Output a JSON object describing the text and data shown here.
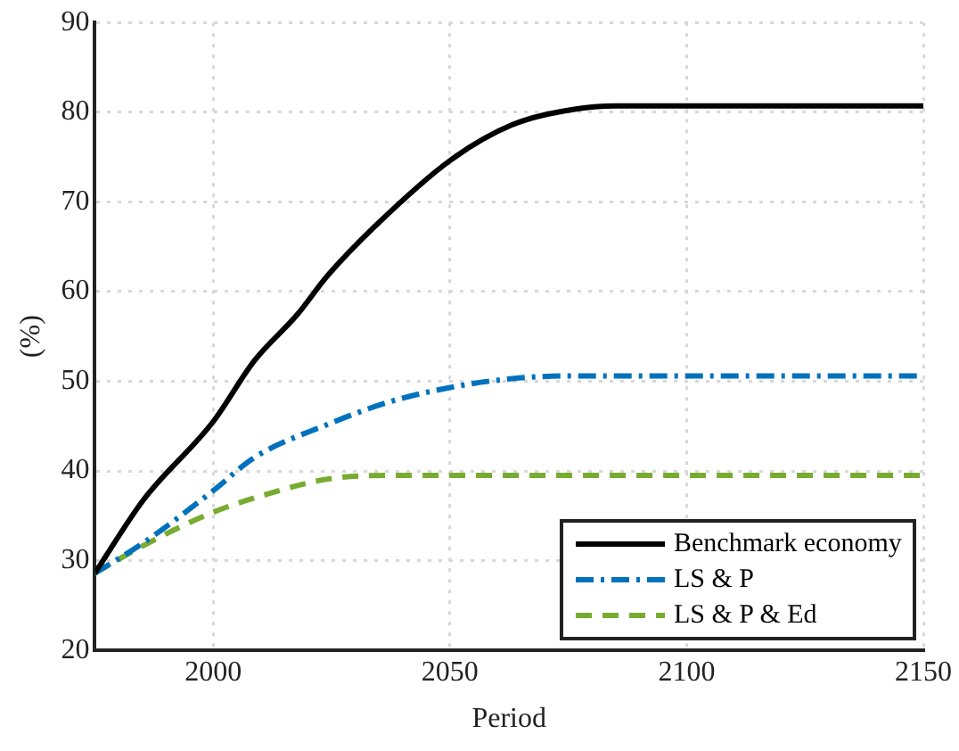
{
  "chart_data": {
    "type": "line",
    "xlabel": "Period",
    "ylabel": "(%)",
    "xlim": [
      1975,
      2150
    ],
    "xticks": [
      2000,
      2050,
      2100,
      2150
    ],
    "ylim": [
      20,
      90
    ],
    "yticks": [
      20,
      30,
      40,
      50,
      60,
      70,
      80,
      90
    ],
    "grid": true,
    "legend": "bottom right",
    "marker": "none",
    "series": [
      {
        "name": "Benchmark economy",
        "color": "#000000",
        "line_style": "solid",
        "x": [
          1975,
          1985.3,
          2000,
          2008.7,
          2017.7,
          2024.2,
          2034.6,
          2050,
          2063.2,
          2076,
          2085,
          2150
        ],
        "values": [
          28.6,
          36.8,
          45.5,
          52.3,
          57.4,
          61.8,
          67.5,
          74.6,
          78.6,
          80.3,
          80.7,
          80.7
        ]
      },
      {
        "name": "LS & P",
        "color": "#0072bd",
        "line_style": "dashdot",
        "x": [
          1975,
          1985.3,
          2000,
          2008.7,
          2024.2,
          2037.2,
          2050,
          2063.2,
          2076,
          2150
        ],
        "values": [
          28.6,
          32.0,
          37.8,
          41.5,
          45.2,
          47.7,
          49.3,
          50.3,
          50.6,
          50.6
        ]
      },
      {
        "name": "LS & P & Ed",
        "color": "#77ac30",
        "line_style": "dashed",
        "x": [
          1975,
          1985.3,
          2000,
          2011.3,
          2024.2,
          2037.2,
          2150
        ],
        "values": [
          28.6,
          31.7,
          35.4,
          37.4,
          39.1,
          39.5,
          39.5
        ]
      }
    ]
  }
}
